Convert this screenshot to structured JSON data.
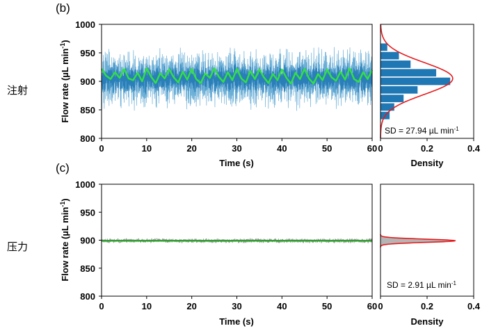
{
  "chart_data": [
    {
      "id": "b",
      "panel_label": "(b)",
      "side_label": "注射",
      "type": "line",
      "ylabel": "Flow rate (µL min⁻¹)",
      "ylabel_main": "Flow rate (µL min",
      "ylabel_sup": "-1",
      "ylabel_close": ")",
      "xlabel": "Time (s)",
      "xlim": [
        0,
        60
      ],
      "ylim": [
        800,
        1000
      ],
      "xticks": [
        0,
        10,
        20,
        30,
        40,
        50,
        60
      ],
      "yticks": [
        800,
        850,
        900,
        950,
        1000
      ],
      "raw": {
        "mean": 905,
        "amplitude": 40,
        "noise": 18,
        "color_light": "#6aaed6",
        "color_dark": "#1f77b4"
      },
      "smoothed": {
        "color": "#33e044",
        "x": [
          0,
          1,
          2,
          3,
          4,
          5,
          6,
          7,
          8,
          9,
          10,
          11,
          12,
          13,
          14,
          15,
          16,
          17,
          18,
          19,
          20,
          21,
          22,
          23,
          24,
          25,
          26,
          27,
          28,
          29,
          30,
          31,
          32,
          33,
          34,
          35,
          36,
          37,
          38,
          39,
          40,
          41,
          42,
          43,
          44,
          45,
          46,
          47,
          48,
          49,
          50,
          51,
          52,
          53,
          54,
          55,
          56,
          57,
          58,
          59,
          60
        ],
        "y": [
          922,
          910,
          904,
          916,
          906,
          922,
          905,
          902,
          915,
          900,
          923,
          908,
          897,
          914,
          905,
          921,
          907,
          898,
          917,
          903,
          922,
          904,
          897,
          914,
          906,
          923,
          908,
          899,
          916,
          902,
          922,
          905,
          898,
          918,
          904,
          921,
          907,
          897,
          913,
          902,
          921,
          906,
          896,
          915,
          904,
          922,
          905,
          896,
          913,
          902,
          921,
          907,
          901,
          917,
          903,
          923,
          904,
          899,
          916,
          904,
          920
        ]
      },
      "histogram": {
        "xlabel": "Density",
        "xlim": [
          0,
          0.4
        ],
        "xticks": [
          0,
          0.2,
          0.4
        ],
        "xtick_labels": [
          "0",
          "0.2",
          "0.4"
        ],
        "bin_centers": [
          960,
          945,
          930,
          915,
          900,
          885,
          870,
          855,
          840
        ],
        "densities": [
          0.03,
          0.08,
          0.13,
          0.24,
          0.3,
          0.16,
          0.1,
          0.06,
          0.04
        ],
        "bar_color": "#1f77b4",
        "fit": {
          "mean": 905,
          "sd": 27.94,
          "peak": 0.31,
          "color": "#e41a1c"
        },
        "sd_label_main": "SD = 27.94 µL min",
        "sd_label_sup": "-1"
      }
    },
    {
      "id": "c",
      "panel_label": "(c)",
      "side_label": "压力",
      "type": "line",
      "ylabel": "Flow rate (µL min⁻¹)",
      "ylabel_main": "Flow rate (µL min",
      "ylabel_sup": "-1",
      "ylabel_close": ")",
      "xlabel": "Time (s)",
      "xlim": [
        0,
        60
      ],
      "ylim": [
        800,
        1000
      ],
      "xticks": [
        0,
        10,
        20,
        30,
        40,
        50,
        60
      ],
      "yticks": [
        800,
        850,
        900,
        950,
        1000
      ],
      "raw": {
        "mean": 899,
        "amplitude": 0,
        "noise": 4,
        "color_light": "#9a9a9a",
        "color_dark": "#7a7a7a"
      },
      "smoothed": {
        "color": "#2ca02c",
        "x": [
          0,
          10,
          20,
          30,
          40,
          50,
          60
        ],
        "y": [
          899,
          899,
          899,
          899,
          899,
          899,
          899
        ]
      },
      "histogram": {
        "xlabel": "Density",
        "xlim": [
          0,
          0.4
        ],
        "xticks": [
          0,
          0.2,
          0.4
        ],
        "xtick_labels": [
          "0",
          "0.2",
          "0.4"
        ],
        "fill_color": "#b5b5b5",
        "fit": {
          "mean": 899,
          "sd": 2.91,
          "peak": 0.32,
          "color": "#e41a1c"
        },
        "sd_label_main": "SD = 2.91 µL min",
        "sd_label_sup": "-1"
      }
    }
  ]
}
